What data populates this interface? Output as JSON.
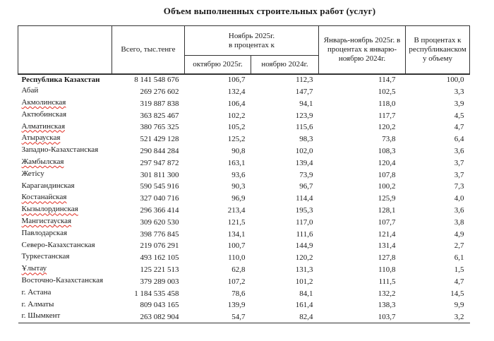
{
  "title": "Объем выполненных строительных работ (услуг)",
  "colors": {
    "text": "#1a1a1a",
    "border": "#333333",
    "spellcheck_underline": "#e02b20"
  },
  "table": {
    "headers": {
      "region": "",
      "total": "Всего, тыс.тенге",
      "november_group": "Ноябрь 2025г.\nв процентах к",
      "to_october": "октябрю 2025г.",
      "to_november": "ноябрю 2024г.",
      "jan_nov": "Январь-ноябрь 2025г. в процентах к январю-ноябрю 2024г.",
      "share": "В процентах к республиканскому объему"
    },
    "rows": [
      {
        "name": "Республика Казахстан",
        "bold": true,
        "spellcheck_underline": false,
        "total": "8 141 548 676",
        "to_october": "106,7",
        "to_november": "112,3",
        "jan_nov": "114,7",
        "share": "100,0"
      },
      {
        "name": "Абай",
        "bold": false,
        "spellcheck_underline": false,
        "total": "269 276 602",
        "to_october": "132,4",
        "to_november": "147,7",
        "jan_nov": "102,5",
        "share": "3,3"
      },
      {
        "name": "Акмолинская",
        "bold": false,
        "spellcheck_underline": true,
        "total": "319 887 838",
        "to_october": "106,4",
        "to_november": "94,1",
        "jan_nov": "118,0",
        "share": "3,9"
      },
      {
        "name": "Актюбинская",
        "bold": false,
        "spellcheck_underline": false,
        "total": "363 825 467",
        "to_october": "102,2",
        "to_november": "123,9",
        "jan_nov": "117,7",
        "share": "4,5"
      },
      {
        "name": "Алматинская",
        "bold": false,
        "spellcheck_underline": true,
        "total": "380 765 325",
        "to_october": "105,2",
        "to_november": "115,6",
        "jan_nov": "120,2",
        "share": "4,7"
      },
      {
        "name": "Атырауская",
        "bold": false,
        "spellcheck_underline": true,
        "total": "521 429 128",
        "to_october": "125,2",
        "to_november": "98,3",
        "jan_nov": "73,8",
        "share": "6,4"
      },
      {
        "name": "Западно-Казахстанская",
        "bold": false,
        "spellcheck_underline": false,
        "total": "290 844 284",
        "to_october": "90,8",
        "to_november": "102,0",
        "jan_nov": "108,3",
        "share": "3,6"
      },
      {
        "name": "Жамбылская",
        "bold": false,
        "spellcheck_underline": true,
        "total": "297 947 872",
        "to_october": "163,1",
        "to_november": "139,4",
        "jan_nov": "120,4",
        "share": "3,7"
      },
      {
        "name": "Жетісу",
        "bold": false,
        "spellcheck_underline": false,
        "total": "301 811 300",
        "to_october": "93,6",
        "to_november": "73,9",
        "jan_nov": "107,8",
        "share": "3,7"
      },
      {
        "name": "Карагандинская",
        "bold": false,
        "spellcheck_underline": false,
        "total": "590 545 916",
        "to_october": "90,3",
        "to_november": "96,7",
        "jan_nov": "100,2",
        "share": "7,3"
      },
      {
        "name": "Костанайская",
        "bold": false,
        "spellcheck_underline": true,
        "total": "327 040 716",
        "to_october": "96,9",
        "to_november": "114,4",
        "jan_nov": "125,9",
        "share": "4,0"
      },
      {
        "name": "Кызылординская",
        "bold": false,
        "spellcheck_underline": true,
        "total": "296 366 414",
        "to_october": "213,4",
        "to_november": "195,3",
        "jan_nov": "128,1",
        "share": "3,6"
      },
      {
        "name": "Мангистауская",
        "bold": false,
        "spellcheck_underline": true,
        "total": "309 620 530",
        "to_october": "121,5",
        "to_november": "117,0",
        "jan_nov": "107,7",
        "share": "3,8"
      },
      {
        "name": "Павлодарская",
        "bold": false,
        "spellcheck_underline": false,
        "total": "398 776 845",
        "to_october": "134,1",
        "to_november": "111,6",
        "jan_nov": "121,4",
        "share": "4,9"
      },
      {
        "name": "Северо-Казахстанская",
        "bold": false,
        "spellcheck_underline": false,
        "total": "219 076 291",
        "to_october": "100,7",
        "to_november": "144,9",
        "jan_nov": "131,4",
        "share": "2,7"
      },
      {
        "name": "Туркестанская",
        "bold": false,
        "spellcheck_underline": false,
        "total": "493 162 105",
        "to_october": "110,0",
        "to_november": "120,2",
        "jan_nov": "127,8",
        "share": "6,1"
      },
      {
        "name": "Ұлытау",
        "bold": false,
        "spellcheck_underline": true,
        "total": "125 221 513",
        "to_october": "62,8",
        "to_november": "131,3",
        "jan_nov": "110,8",
        "share": "1,5"
      },
      {
        "name": "Восточно-Казахстанская",
        "bold": false,
        "spellcheck_underline": false,
        "total": "379 289 003",
        "to_october": "107,2",
        "to_november": "101,2",
        "jan_nov": "111,5",
        "share": "4,7"
      },
      {
        "name": "г. Астана",
        "bold": false,
        "spellcheck_underline": false,
        "total": "1 184 535 458",
        "to_october": "78,6",
        "to_november": "84,1",
        "jan_nov": "132,2",
        "share": "14,5"
      },
      {
        "name": "г. Алматы",
        "bold": false,
        "spellcheck_underline": false,
        "total": "809 043 165",
        "to_october": "139,9",
        "to_november": "161,4",
        "jan_nov": "138,3",
        "share": "9,9"
      },
      {
        "name": "г. Шымкент",
        "bold": false,
        "spellcheck_underline": false,
        "total": "263 082 904",
        "to_october": "54,7",
        "to_november": "82,4",
        "jan_nov": "103,7",
        "share": "3,2"
      }
    ]
  }
}
